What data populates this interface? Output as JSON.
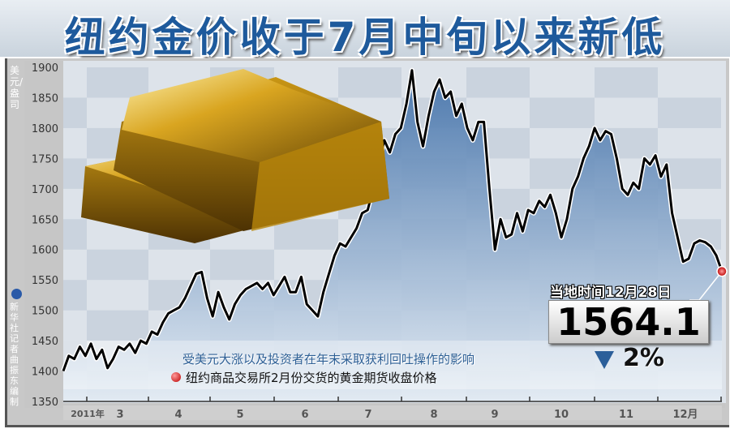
{
  "title": "纽约金价收于7月中旬以来新低",
  "y_unit": "美元/盎司",
  "credit": "新华社记者 曲振东 编制",
  "callout": {
    "date": "当地时间12月28日",
    "value": "1564.1",
    "change": "2%",
    "direction": "down"
  },
  "note": "受美元大涨以及投资者在年末采取获利回吐操作的影响",
  "legend": "纽约商品交易所2月份交货的黄金期货收盘价格",
  "colors": {
    "title": "#1e5a9c",
    "line": "#000000",
    "fill_top": "#4a78ad",
    "fill_bottom": "#dfe8f2",
    "marker": "#d42020"
  },
  "chart_data": {
    "type": "area",
    "ylim": [
      1350,
      1900
    ],
    "yticks": [
      1350,
      1400,
      1450,
      1500,
      1550,
      1600,
      1650,
      1700,
      1750,
      1800,
      1850,
      1900
    ],
    "year_label": "2011年",
    "month_labels": [
      "3",
      "4",
      "5",
      "6",
      "7",
      "8",
      "9",
      "10",
      "11",
      "12月"
    ],
    "grid": false,
    "series": [
      {
        "values": [
          1400,
          1425,
          1420,
          1440,
          1425,
          1445,
          1420,
          1435,
          1405,
          1420,
          1440,
          1435,
          1445,
          1430,
          1450,
          1445,
          1465,
          1460,
          1480,
          1495,
          1500,
          1505,
          1520,
          1540,
          1560,
          1563,
          1520,
          1490,
          1530,
          1505,
          1485,
          1510,
          1525,
          1535,
          1540,
          1545,
          1535,
          1545,
          1525,
          1540,
          1555,
          1530,
          1530,
          1555,
          1510,
          1500,
          1490,
          1530,
          1560,
          1590,
          1610,
          1605,
          1620,
          1635,
          1660,
          1665,
          1700,
          1740,
          1780,
          1760,
          1790,
          1800,
          1840,
          1895,
          1810,
          1770,
          1820,
          1860,
          1880,
          1850,
          1860,
          1820,
          1840,
          1800,
          1780,
          1810,
          1810,
          1700,
          1600,
          1650,
          1620,
          1625,
          1660,
          1630,
          1665,
          1660,
          1680,
          1670,
          1690,
          1660,
          1620,
          1650,
          1700,
          1720,
          1750,
          1770,
          1800,
          1780,
          1795,
          1790,
          1750,
          1700,
          1690,
          1710,
          1700,
          1750,
          1740,
          1755,
          1720,
          1740,
          1660,
          1620,
          1580,
          1585,
          1610,
          1615,
          1612,
          1605,
          1590,
          1564.1
        ]
      }
    ]
  }
}
